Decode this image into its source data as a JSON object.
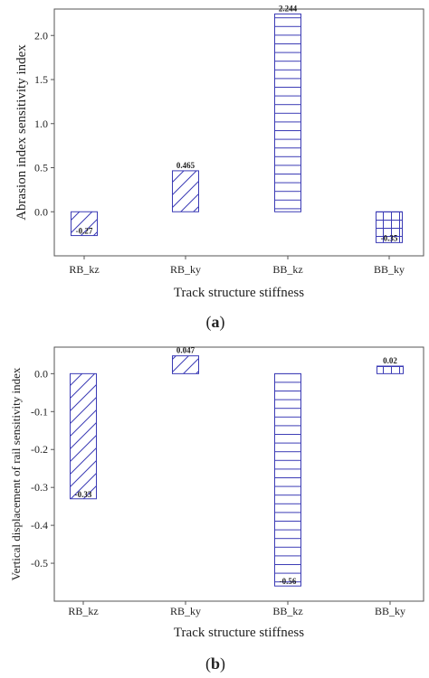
{
  "chart_data": [
    {
      "type": "bar",
      "caption": "(a)",
      "caption_letter": "a",
      "categories": [
        "RB_kz",
        "RB_ky",
        "BB_kz",
        "BB_ky"
      ],
      "values": [
        -0.27,
        0.465,
        2.244,
        -0.35
      ],
      "data_labels": [
        "-0.27",
        "0.465",
        "2.244",
        "-0.35"
      ],
      "patterns": [
        "diagonal",
        "diagonal",
        "horizontal",
        "grid"
      ],
      "xlabel": "Track structure stiffness",
      "ylabel": "Abrasion index sensitivity index",
      "ylim": [
        -0.5,
        2.3
      ],
      "yticks": [
        0.0,
        0.5,
        1.0,
        1.5,
        2.0
      ],
      "ytick_labels": [
        "0.0",
        "0.5",
        "1.0",
        "1.5",
        "2.0"
      ],
      "bar_color": "#3b3bb5",
      "grid": false
    },
    {
      "type": "bar",
      "caption": "(b)",
      "caption_letter": "b",
      "categories": [
        "RB_kz",
        "RB_ky",
        "BB_kz",
        "BB_ky"
      ],
      "values": [
        -0.33,
        0.047,
        -0.56,
        0.02
      ],
      "data_labels": [
        "-0.33",
        "0.047",
        "-0.56",
        "0.02"
      ],
      "patterns": [
        "diagonal",
        "diagonal",
        "horizontal",
        "grid"
      ],
      "xlabel": "Track structure stiffness",
      "ylabel": "Vertical displacement of rail sensitivity index",
      "ylim": [
        -0.6,
        0.07
      ],
      "yticks": [
        0.0,
        -0.1,
        -0.2,
        -0.3,
        -0.4,
        -0.5
      ],
      "ytick_labels": [
        "0.0",
        "-0.1",
        "-0.2",
        "-0.3",
        "-0.4",
        "-0.5"
      ],
      "bar_color": "#3b3bb5",
      "grid": false
    }
  ]
}
